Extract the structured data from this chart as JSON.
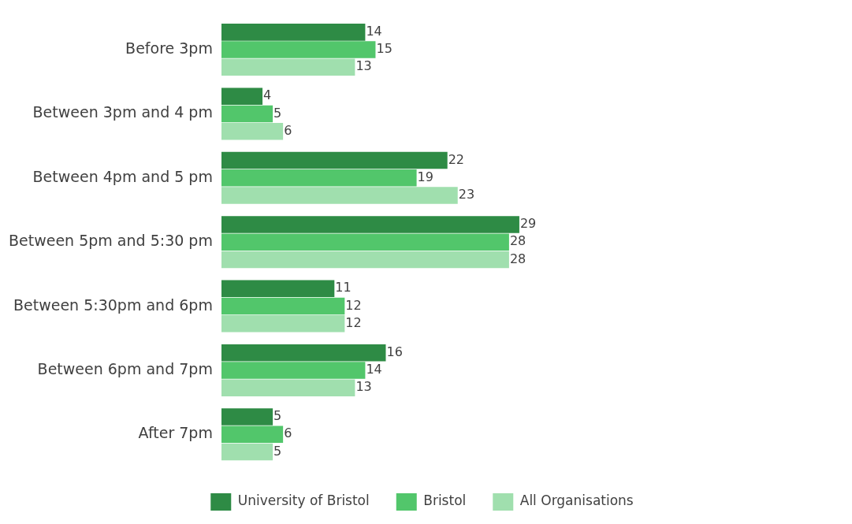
{
  "chart_data": {
    "type": "bar",
    "orientation": "horizontal",
    "data_labels": true,
    "legend": "bottom",
    "categories": [
      "Before 3pm",
      "Between 3pm and 4 pm",
      "Between 4pm and 5 pm",
      "Between 5pm and 5:30 pm",
      "Between 5:30pm and 6pm",
      "Between 6pm and 7pm",
      "After 7pm"
    ],
    "series": [
      {
        "name": "University of Bristol",
        "color": "#2e8b45",
        "values": [
          14,
          4,
          22,
          29,
          11,
          16,
          5
        ]
      },
      {
        "name": "Bristol",
        "color": "#52c66b",
        "values": [
          15,
          5,
          19,
          28,
          12,
          14,
          6
        ]
      },
      {
        "name": "All Organisations",
        "color": "#a0dfae",
        "values": [
          13,
          6,
          23,
          28,
          12,
          13,
          5
        ]
      }
    ]
  }
}
